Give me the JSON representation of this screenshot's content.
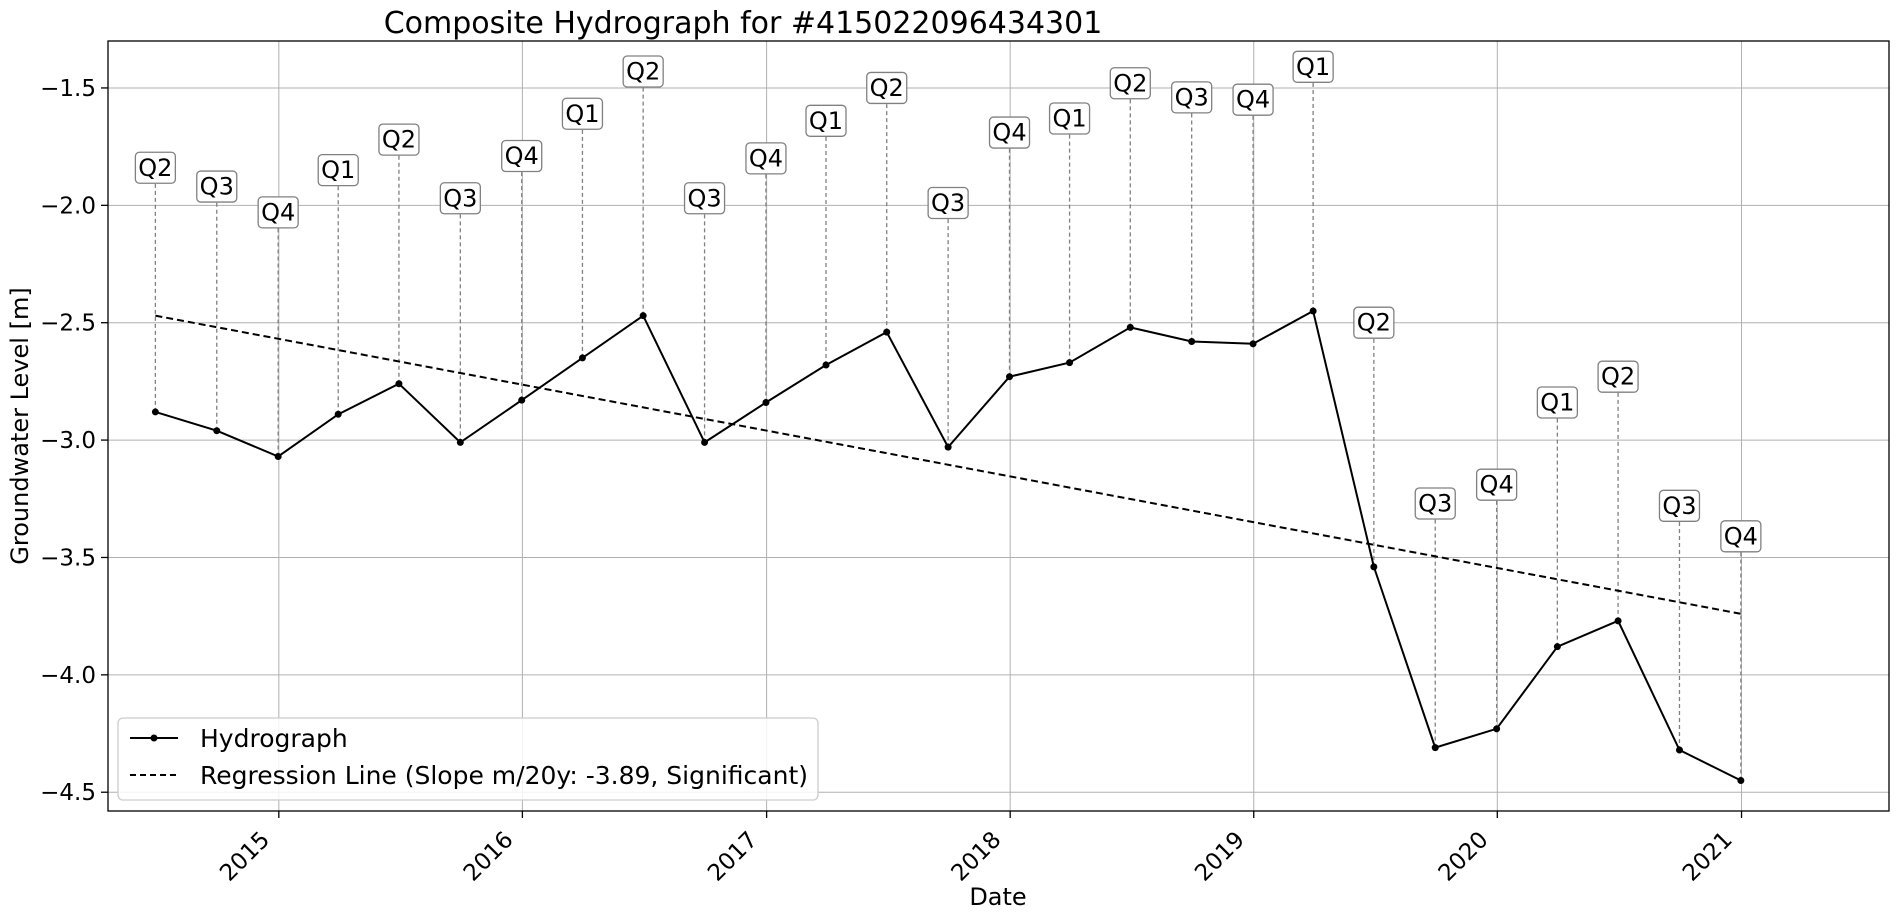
{
  "chart_data": {
    "type": "line",
    "title": "Composite Hydrograph for  #415022096434301",
    "xlabel": "Date",
    "ylabel": "Groundwater Level [m]",
    "xlim": [
      "2014-04-20",
      "2021-08-10"
    ],
    "ylim": [
      -4.58,
      -1.3
    ],
    "x_ticks": [
      "2015-01-01",
      "2016-01-01",
      "2017-01-01",
      "2018-01-01",
      "2019-01-01",
      "2020-01-01",
      "2021-01-01"
    ],
    "x_tick_labels": [
      "2015",
      "2016",
      "2017",
      "2018",
      "2019",
      "2020",
      "2021"
    ],
    "y_ticks": [
      -1.5,
      -2.0,
      -2.5,
      -3.0,
      -3.5,
      -4.0,
      -4.5
    ],
    "y_tick_labels": [
      "−1.5",
      "−2.0",
      "−2.5",
      "−3.0",
      "−3.5",
      "−4.0",
      "−4.5"
    ],
    "grid": true,
    "legend_position": "lower-left",
    "series": [
      {
        "name": "Hydrograph",
        "style": "solid-with-markers",
        "color": "#000000",
        "x": [
          "2014-06-30",
          "2014-09-30",
          "2014-12-31",
          "2015-03-31",
          "2015-06-30",
          "2015-09-30",
          "2015-12-31",
          "2016-03-31",
          "2016-06-30",
          "2016-09-30",
          "2016-12-31",
          "2017-03-31",
          "2017-06-30",
          "2017-09-30",
          "2017-12-31",
          "2018-03-31",
          "2018-06-30",
          "2018-09-30",
          "2018-12-31",
          "2019-03-31",
          "2019-06-30",
          "2019-09-30",
          "2019-12-31",
          "2020-03-31",
          "2020-06-30",
          "2020-09-30",
          "2020-12-31"
        ],
        "y": [
          -2.88,
          -2.96,
          -3.07,
          -2.89,
          -2.76,
          -3.01,
          -2.83,
          -2.65,
          -2.47,
          -3.01,
          -2.84,
          -2.68,
          -2.54,
          -3.03,
          -2.73,
          -2.67,
          -2.52,
          -2.58,
          -2.59,
          -2.45,
          -3.54,
          -4.31,
          -4.23,
          -3.88,
          -3.77,
          -4.32,
          -4.45
        ],
        "labels": [
          "Q2",
          "Q3",
          "Q4",
          "Q1",
          "Q2",
          "Q3",
          "Q4",
          "Q1",
          "Q2",
          "Q3",
          "Q4",
          "Q1",
          "Q2",
          "Q3",
          "Q4",
          "Q1",
          "Q2",
          "Q3",
          "Q4",
          "Q1",
          "Q2",
          "Q3",
          "Q4",
          "Q1",
          "Q2",
          "Q3",
          "Q4"
        ],
        "label_y": [
          -1.84,
          -1.92,
          -2.03,
          -1.85,
          -1.72,
          -1.97,
          -1.79,
          -1.61,
          -1.43,
          -1.97,
          -1.8,
          -1.64,
          -1.5,
          -1.99,
          -1.69,
          -1.63,
          -1.48,
          -1.54,
          -1.55,
          -1.41,
          -2.5,
          -3.27,
          -3.19,
          -2.84,
          -2.73,
          -3.28,
          -3.41
        ]
      },
      {
        "name": "Regression Line (Slope m/20y: -3.89, Significant)",
        "style": "dashed",
        "color": "#000000",
        "x": [
          "2014-06-30",
          "2020-12-31"
        ],
        "y": [
          -2.47,
          -3.74
        ]
      }
    ]
  }
}
